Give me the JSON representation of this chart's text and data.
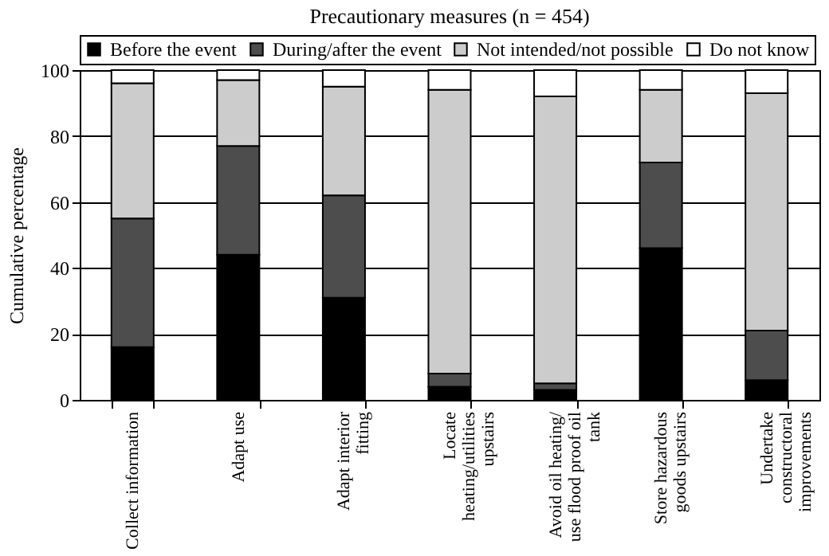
{
  "chart_data": {
    "type": "bar",
    "title": "Precautionary measures (n = 454)",
    "ylabel": "Cumulative percentage",
    "categories": [
      "Collect information",
      "Adapt use",
      "Adapt interior fitting",
      "Locate heating/utilities upstairs",
      "Avoid oil heating/ use flood proof oil tank",
      "Store hazardous goods upstairs",
      "Undertake constructoral improvements"
    ],
    "stacked": true,
    "ylim": [
      0,
      100
    ],
    "yticks": [
      0,
      20,
      40,
      60,
      80,
      100
    ],
    "grid": "y",
    "legend": "top",
    "series": [
      {
        "name": "Before the event",
        "color": "#000000",
        "values": [
          16,
          44,
          31,
          4,
          3,
          46,
          6
        ]
      },
      {
        "name": "During/after the event",
        "color": "#4d4d4d",
        "values": [
          39,
          33,
          31,
          4,
          2,
          26,
          15
        ]
      },
      {
        "name": "Not intended/not possible",
        "color": "#cccccc",
        "values": [
          41,
          20,
          33,
          86,
          87,
          22,
          72
        ]
      },
      {
        "name": "Do not know",
        "color": "#ffffff",
        "values": [
          4,
          3,
          5,
          6,
          8,
          6,
          7
        ]
      }
    ]
  }
}
